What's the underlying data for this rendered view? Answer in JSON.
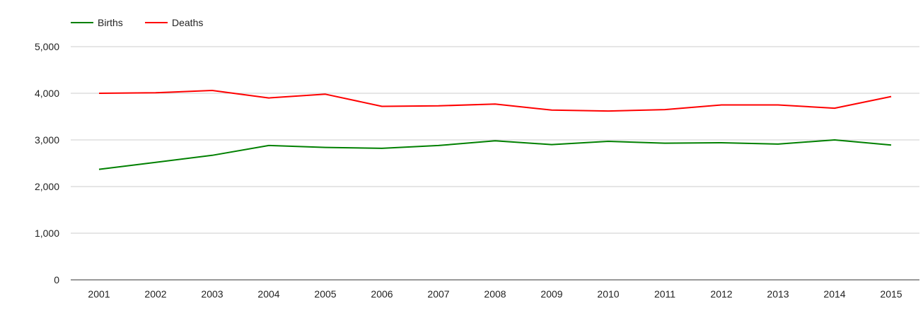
{
  "chart_data": {
    "type": "line",
    "x": [
      "2001",
      "2002",
      "2003",
      "2004",
      "2005",
      "2006",
      "2007",
      "2008",
      "2009",
      "2010",
      "2011",
      "2012",
      "2013",
      "2014",
      "2015"
    ],
    "series": [
      {
        "name": "Births",
        "color": "#008000",
        "values": [
          2370,
          2520,
          2670,
          2880,
          2840,
          2820,
          2880,
          2980,
          2900,
          2970,
          2930,
          2940,
          2910,
          3000,
          2890
        ]
      },
      {
        "name": "Deaths",
        "color": "#ff0000",
        "values": [
          4000,
          4010,
          4060,
          3900,
          3980,
          3720,
          3730,
          3770,
          3640,
          3620,
          3650,
          3750,
          3750,
          3680,
          3930
        ]
      }
    ],
    "yticks": [
      "0",
      "1,000",
      "2,000",
      "3,000",
      "4,000",
      "5,000"
    ],
    "ylim": [
      0,
      5000
    ],
    "grid": true,
    "legend": "top-left"
  }
}
